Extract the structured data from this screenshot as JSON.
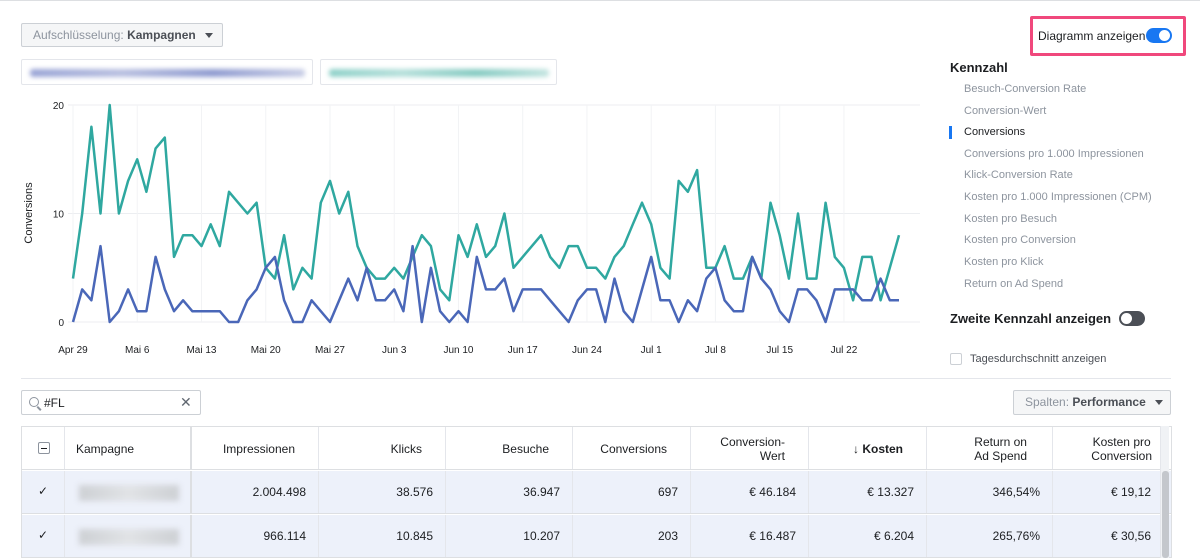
{
  "breakdown": {
    "prefix": "Aufschlüsselung:",
    "value": "Kampagnen"
  },
  "chart_toggle": {
    "label": "Diagramm anzeigen",
    "on": true
  },
  "chart_data": {
    "type": "line",
    "ylabel": "Conversions",
    "ylim": [
      0,
      20
    ],
    "yticks": [
      "0",
      "10",
      "20"
    ],
    "xticks": [
      "Apr 29",
      "Mai 6",
      "Mai 13",
      "Mai 20",
      "Mai 27",
      "Jun 3",
      "Jun 10",
      "Jun 17",
      "Jun 24",
      "Jul 1",
      "Jul 8",
      "Jul 15",
      "Jul 22"
    ],
    "xtick_index": [
      0,
      7,
      14,
      21,
      28,
      35,
      42,
      49,
      56,
      63,
      70,
      77,
      84
    ],
    "colors": [
      "#2fa8a0",
      "#4a67b8"
    ],
    "series": [
      {
        "values": [
          4,
          10,
          18,
          10,
          20,
          10,
          13,
          15,
          12,
          16,
          17,
          6,
          8,
          8,
          7,
          9,
          7,
          12,
          11,
          10,
          11,
          5,
          4,
          8,
          3,
          5,
          4,
          11,
          13,
          10,
          12,
          7,
          5,
          4,
          4,
          5,
          4,
          6,
          8,
          7,
          3,
          2,
          8,
          6,
          9,
          6,
          7,
          10,
          5,
          6,
          7,
          8,
          6,
          5,
          7,
          7,
          5,
          5,
          4,
          6,
          7,
          9,
          11,
          9,
          5,
          4,
          13,
          12,
          14,
          5,
          5,
          7,
          4,
          4,
          6,
          4,
          11,
          8,
          4,
          10,
          4,
          4,
          11,
          6,
          5,
          2,
          6,
          6,
          2,
          5,
          8
        ]
      },
      {
        "values": [
          0,
          3,
          2,
          7,
          0,
          1,
          3,
          1,
          1,
          6,
          3,
          1,
          2,
          1,
          1,
          1,
          1,
          0,
          0,
          2,
          3,
          5,
          6,
          2,
          0,
          0,
          2,
          1,
          0,
          2,
          4,
          2,
          5,
          2,
          2,
          3,
          1,
          7,
          0,
          5,
          1,
          0,
          1,
          0,
          6,
          3,
          3,
          4,
          1,
          3,
          3,
          3,
          2,
          1,
          0,
          2,
          3,
          3,
          0,
          4,
          1,
          0,
          3,
          6,
          2,
          2,
          0,
          2,
          1,
          4,
          5,
          2,
          1,
          1,
          6,
          4,
          3,
          1,
          0,
          3,
          3,
          2,
          0,
          3,
          3,
          3,
          2,
          2,
          4,
          2,
          2
        ]
      }
    ]
  },
  "metrics": {
    "title": "Kennzahl",
    "items": [
      "Besuch-Conversion Rate",
      "Conversion-Wert",
      "Conversions",
      "Conversions pro 1.000 Impressionen",
      "Klick-Conversion Rate",
      "Kosten pro 1.000 Impressionen (CPM)",
      "Kosten pro Besuch",
      "Kosten pro Conversion",
      "Kosten pro Klick",
      "Return on Ad Spend"
    ],
    "active_index": 2,
    "second_metric_label": "Zweite Kennzahl anzeigen",
    "second_metric_on": false,
    "daily_avg_label": "Tagesdurchschnitt anzeigen"
  },
  "search": {
    "value": "#FL"
  },
  "columns": {
    "prefix": "Spalten:",
    "value": "Performance"
  },
  "table": {
    "headers": [
      {
        "label": "Kampagne"
      },
      {
        "label": "Impressionen"
      },
      {
        "label": "Klicks"
      },
      {
        "label": "Besuche"
      },
      {
        "label": "Conversions"
      },
      {
        "label": "Conversion-",
        "label2": "Wert"
      },
      {
        "label": "↓ Kosten"
      },
      {
        "label": "Return on",
        "label2": "Ad Spend"
      },
      {
        "label": "Kosten pro",
        "label2": "Conversion"
      }
    ],
    "rows": [
      {
        "checked": true,
        "impressionen": "2.004.498",
        "klicks": "38.576",
        "besuche": "36.947",
        "conversions": "697",
        "conversion_wert": "€ 46.184",
        "kosten": "€ 13.327",
        "roas": "346,54%",
        "kpc": "€ 19,12"
      },
      {
        "checked": true,
        "impressionen": "966.114",
        "klicks": "10.845",
        "besuche": "10.207",
        "conversions": "203",
        "conversion_wert": "€ 16.487",
        "kosten": "€ 6.204",
        "roas": "265,76%",
        "kpc": "€ 30,56"
      }
    ]
  }
}
